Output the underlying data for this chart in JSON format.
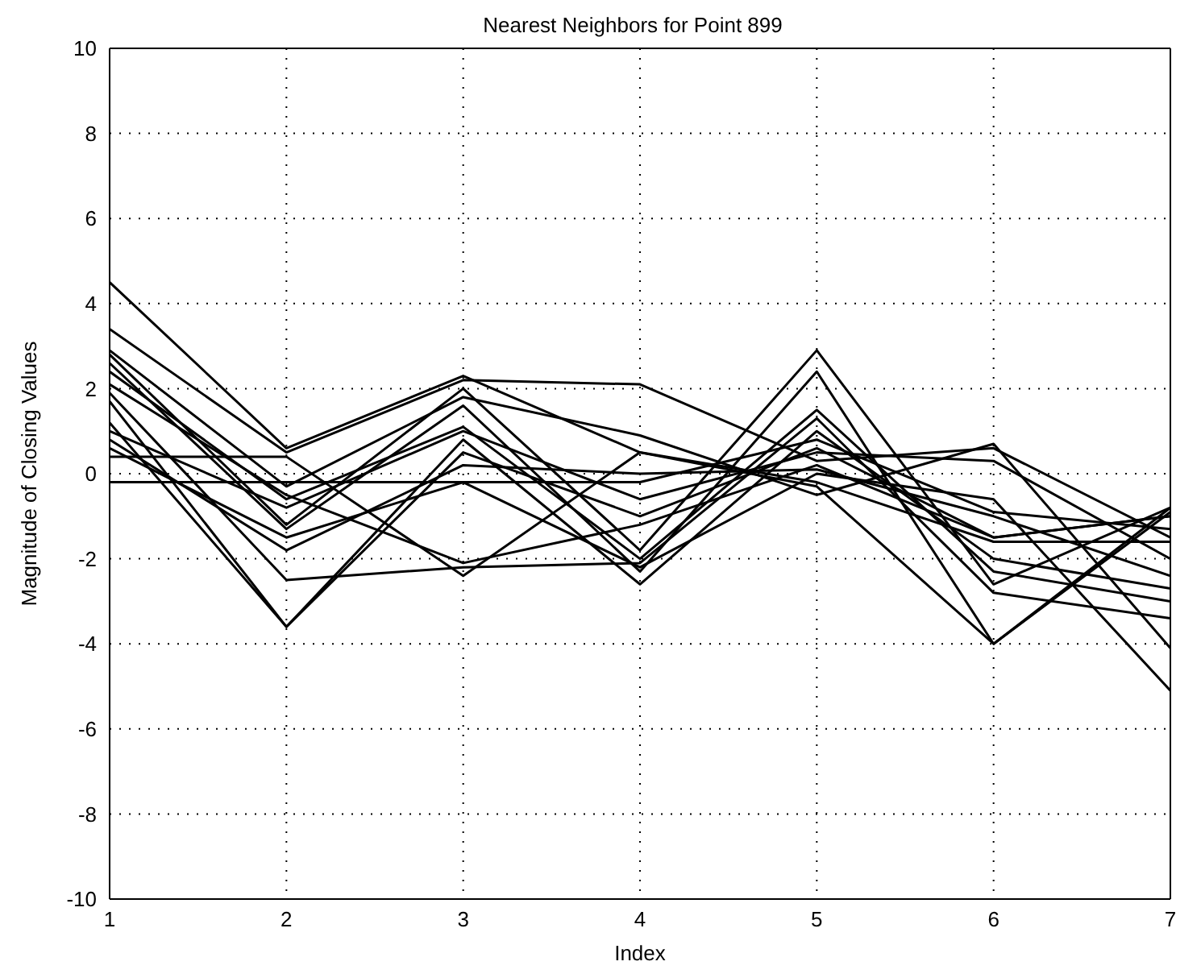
{
  "chart_data": {
    "type": "line",
    "title": "Nearest Neighbors for Point 899",
    "xlabel": "Index",
    "ylabel": "Magnitude of Closing Values",
    "x": [
      1,
      2,
      3,
      4,
      5,
      6,
      7
    ],
    "xlim": [
      1,
      7
    ],
    "xticks": [
      1,
      2,
      3,
      4,
      5,
      6,
      7
    ],
    "ylim": [
      -10,
      10
    ],
    "yticks": [
      -10,
      -8,
      -6,
      -4,
      -2,
      0,
      2,
      4,
      6,
      8,
      10
    ],
    "grid": true,
    "legend": false,
    "marker": "none",
    "line_style": "solid",
    "series": [
      {
        "color": "#000000",
        "values": [
          4.5,
          0.6,
          2.3,
          0.5,
          -0.3,
          -4.0,
          -0.8
        ]
      },
      {
        "color": "#000000",
        "values": [
          3.4,
          0.5,
          2.2,
          2.1,
          0.3,
          0.6,
          -1.5
        ]
      },
      {
        "color": "#000000",
        "values": [
          2.9,
          -0.3,
          1.8,
          0.9,
          -0.5,
          0.7,
          -4.1
        ]
      },
      {
        "color": "#000000",
        "values": [
          2.8,
          -1.2,
          2.0,
          -1.8,
          2.9,
          -2.6,
          -0.8
        ]
      },
      {
        "color": "#000000",
        "values": [
          2.6,
          -1.3,
          1.6,
          -2.3,
          2.4,
          -4.0,
          -0.9
        ]
      },
      {
        "color": "#000000",
        "values": [
          2.4,
          -0.6,
          1.1,
          -2.0,
          1.5,
          -2.3,
          -3.0
        ]
      },
      {
        "color": "#000000",
        "values": [
          1.9,
          -2.5,
          -2.2,
          -2.1,
          1.3,
          -2.8,
          -3.4
        ]
      },
      {
        "color": "#000000",
        "values": [
          1.7,
          -3.6,
          0.8,
          -2.6,
          1.0,
          -2.0,
          -2.7
        ]
      },
      {
        "color": "#000000",
        "values": [
          1.2,
          -3.6,
          0.5,
          -1.0,
          0.6,
          -1.5,
          -1.0
        ]
      },
      {
        "color": "#000000",
        "values": [
          0.8,
          -1.8,
          0.2,
          0.0,
          0.1,
          -1.0,
          -2.4
        ]
      },
      {
        "color": "#000000",
        "values": [
          0.6,
          -1.5,
          -0.2,
          -2.2,
          0.0,
          -0.6,
          -5.1
        ]
      },
      {
        "color": "#000000",
        "values": [
          0.4,
          0.4,
          -2.4,
          0.5,
          -0.2,
          -1.6,
          -1.6
        ]
      },
      {
        "color": "#000000",
        "values": [
          -0.2,
          -0.2,
          -0.2,
          -0.2,
          0.8,
          -0.9,
          -1.3
        ]
      },
      {
        "color": "#000000",
        "values": [
          1.0,
          -0.8,
          1.0,
          -0.6,
          0.5,
          0.3,
          -2.0
        ]
      },
      {
        "color": "#000000",
        "values": [
          2.1,
          -0.5,
          -2.1,
          -1.2,
          0.2,
          -1.5,
          -1.0
        ]
      }
    ]
  }
}
